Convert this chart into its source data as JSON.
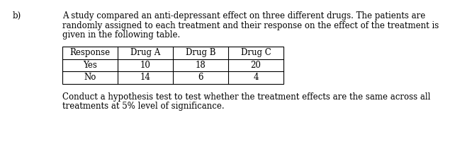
{
  "label_b": "b)",
  "paragraph_lines": [
    "A study compared an anti-depressant effect on three different drugs. The patients are",
    "randomly assigned to each treatment and their response on the effect of the treatment is",
    "given in the following table."
  ],
  "table_headers": [
    "Response",
    "Drug A",
    "Drug B",
    "Drug C"
  ],
  "table_rows": [
    [
      "Yes",
      "10",
      "18",
      "20"
    ],
    [
      "No",
      "14",
      "6",
      "4"
    ]
  ],
  "footnote_lines": [
    "Conduct a hypothesis test to test whether the treatment effects are the same across all",
    "treatments at 5% level of significance."
  ],
  "bg_color": "#ffffff",
  "text_color": "#000000",
  "font_size": 8.5,
  "font_family": "DejaVu Serif"
}
